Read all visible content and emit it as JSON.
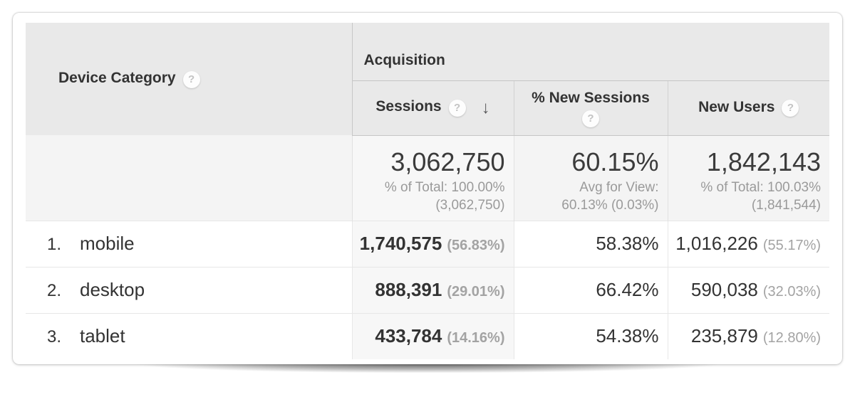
{
  "icons": {
    "help": "?",
    "sort_down": "↓"
  },
  "colors": {
    "header_bg": "#e9e9e9",
    "summary_bg": "#f4f4f4",
    "sorted_column_bg": "#f7f7f7",
    "border_dark": "#c6c6c6",
    "border_light": "#e7e7e7",
    "text_dark": "#333333",
    "text_gray": "#9a9a9a"
  },
  "table": {
    "dimension_header": {
      "label": "Device Category"
    },
    "group_header": {
      "label": "Acquisition"
    },
    "columns": [
      {
        "label": "Sessions",
        "sorted": "descending"
      },
      {
        "label": "% New Sessions"
      },
      {
        "label": "New Users"
      }
    ],
    "summary": {
      "sessions": {
        "value": "3,062,750",
        "sub1": "% of Total: 100.00%",
        "sub2": "(3,062,750)"
      },
      "new_sessions": {
        "value": "60.15%",
        "sub1": "Avg for View:",
        "sub2": "60.13% (0.03%)"
      },
      "new_users": {
        "value": "1,842,143",
        "sub1": "% of Total: 100.03%",
        "sub2": "(1,841,544)"
      }
    },
    "rows": [
      {
        "index": "1.",
        "device": "mobile",
        "sessions": "1,740,575",
        "sessions_pct": "(56.83%)",
        "new_sessions_pct": "58.38%",
        "new_users": "1,016,226",
        "new_users_pct": "(55.17%)"
      },
      {
        "index": "2.",
        "device": "desktop",
        "sessions": "888,391",
        "sessions_pct": "(29.01%)",
        "new_sessions_pct": "66.42%",
        "new_users": "590,038",
        "new_users_pct": "(32.03%)"
      },
      {
        "index": "3.",
        "device": "tablet",
        "sessions": "433,784",
        "sessions_pct": "(14.16%)",
        "new_sessions_pct": "54.38%",
        "new_users": "235,879",
        "new_users_pct": "(12.80%)"
      }
    ]
  }
}
